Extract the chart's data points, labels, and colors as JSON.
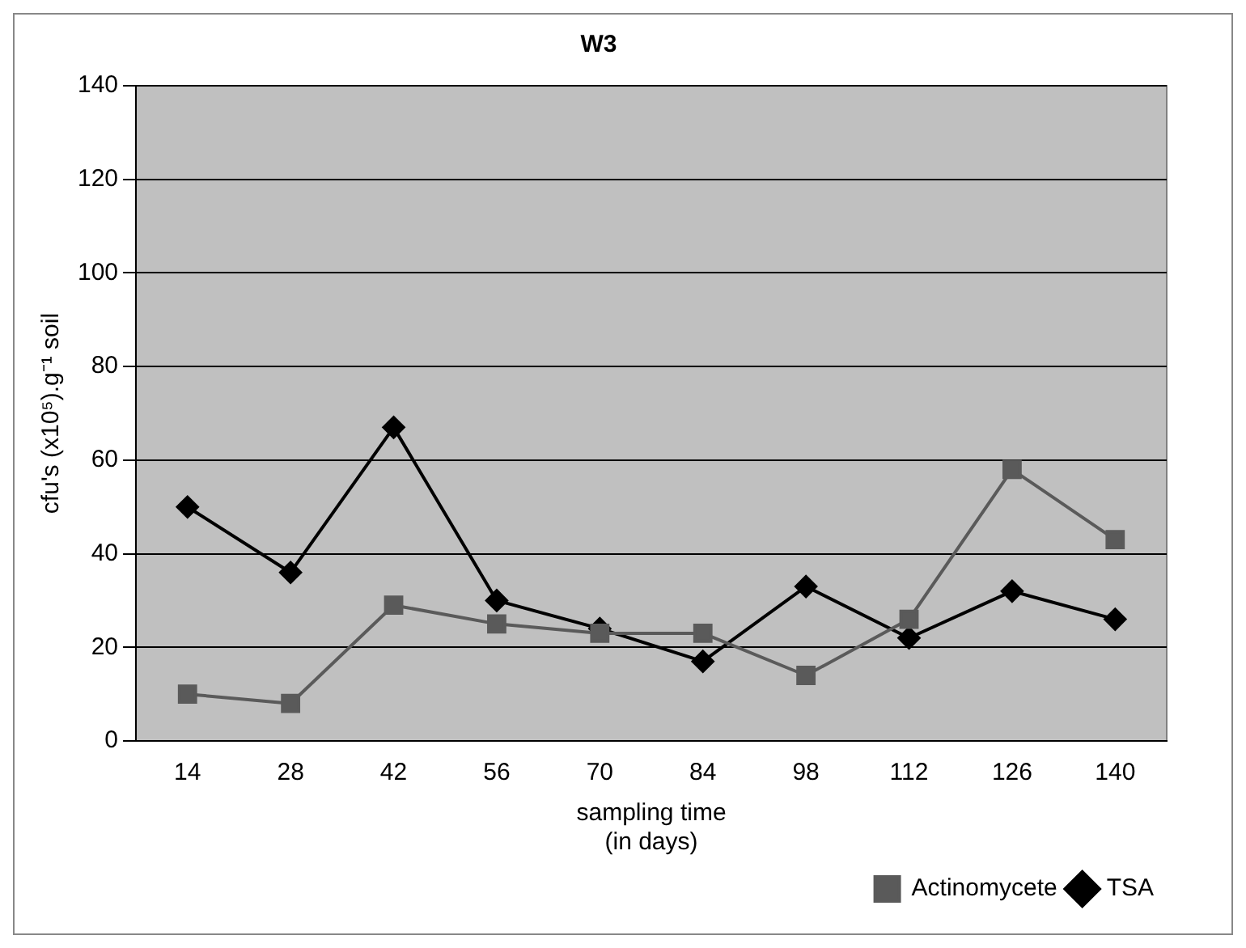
{
  "chart_data": {
    "type": "line",
    "title": "W3",
    "xlabel": "sampling time\n(in days)",
    "ylabel": "cfu's (x10⁵).g⁻¹ soil",
    "categories": [
      "14",
      "28",
      "42",
      "56",
      "70",
      "84",
      "98",
      "112",
      "126",
      "140"
    ],
    "series": [
      {
        "name": "TSA",
        "color": "#000000",
        "marker": "diamond",
        "values": [
          50,
          36,
          67,
          30,
          24,
          17,
          33,
          22,
          32,
          26
        ]
      },
      {
        "name": "Actinomycete",
        "color": "#5a5a5a",
        "marker": "square",
        "values": [
          10,
          8,
          29,
          25,
          23,
          23,
          14,
          26,
          58,
          43
        ]
      }
    ],
    "ylim": [
      0,
      140
    ],
    "yticks": [
      0,
      20,
      40,
      60,
      80,
      100,
      120,
      140
    ],
    "grid": "y",
    "legend": "bottom right",
    "line_style": "solid"
  }
}
